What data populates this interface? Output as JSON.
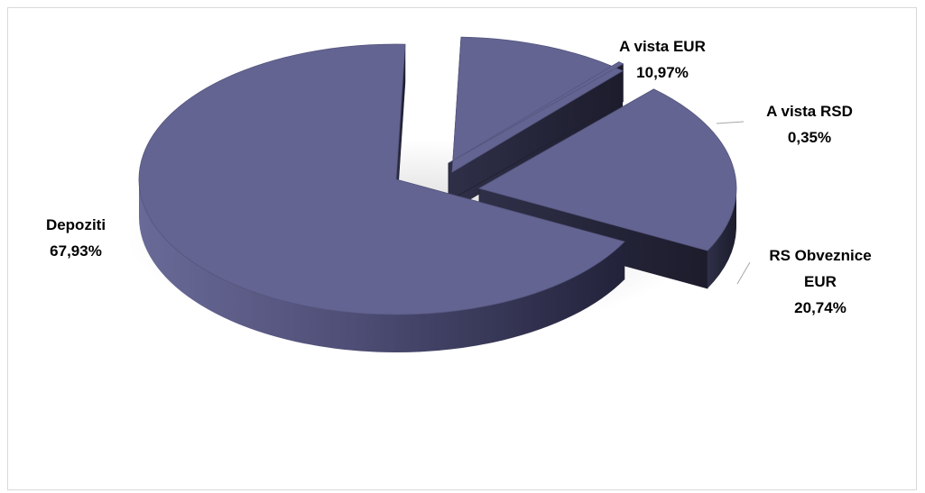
{
  "chart_data": {
    "type": "pie",
    "style": "3d-exploded",
    "categories": [
      "A vista EUR",
      "A vista RSD",
      "RS Obveznice EUR",
      "Depoziti"
    ],
    "values": [
      10.97,
      0.35,
      20.74,
      67.93
    ],
    "value_labels": [
      "10,97%",
      "0,35%",
      "20,74%",
      "67,93%"
    ],
    "label_lines": [
      [
        "A vista EUR",
        "10,97%"
      ],
      [
        "A vista RSD",
        "0,35%"
      ],
      [
        "RS Obveznice",
        "EUR",
        "20,74%"
      ],
      [
        "Depoziti",
        "67,93%"
      ]
    ],
    "colors": {
      "top": "#636491",
      "side": "#2b2b42",
      "side_light": "#5b5b85",
      "rim_dark": "#1f1f30"
    },
    "legend": "none",
    "title": ""
  }
}
